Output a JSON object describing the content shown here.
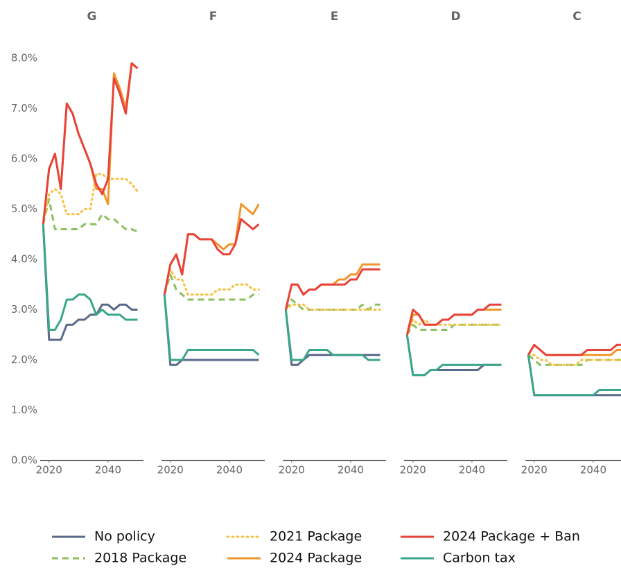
{
  "chart_data": [
    {
      "type": "line",
      "title": "G",
      "x": [
        2018,
        2020,
        2022,
        2024,
        2026,
        2028,
        2030,
        2032,
        2034,
        2036,
        2038,
        2040,
        2042,
        2044,
        2046,
        2048,
        2050
      ],
      "xlim": [
        2017,
        2052
      ],
      "ylim": [
        0,
        8
      ],
      "xticks": [
        2020,
        2040
      ],
      "yticks": [
        {
          "value": 0,
          "label": "0.0%"
        },
        {
          "value": 1,
          "label": "1.0%"
        },
        {
          "value": 2,
          "label": "2.0%"
        },
        {
          "value": 3,
          "label": "3.0%"
        },
        {
          "value": 4,
          "label": "4.0%"
        },
        {
          "value": 5,
          "label": "5.0%"
        },
        {
          "value": 6,
          "label": "6.0%"
        },
        {
          "value": 7,
          "label": "7.0%"
        },
        {
          "value": 8,
          "label": "8.0%"
        }
      ],
      "series": [
        {
          "name": "No policy",
          "color": "#58698a",
          "style": "solid",
          "values": [
            4.7,
            2.4,
            2.4,
            2.4,
            2.7,
            2.7,
            2.8,
            2.8,
            2.9,
            2.9,
            3.1,
            3.1,
            3.0,
            3.1,
            3.1,
            3.0,
            3.0
          ]
        },
        {
          "name": "2018 Package",
          "color": "#8cbf5f",
          "style": "dashed",
          "values": [
            4.7,
            5.2,
            4.6,
            4.6,
            4.6,
            4.6,
            4.6,
            4.7,
            4.7,
            4.7,
            4.9,
            4.8,
            4.8,
            4.7,
            4.6,
            4.6,
            4.55
          ]
        },
        {
          "name": "2021 Package",
          "color": "#f5c242",
          "style": "dotted",
          "values": [
            4.7,
            5.3,
            5.4,
            5.3,
            4.9,
            4.9,
            4.9,
            5.0,
            5.0,
            5.7,
            5.7,
            5.6,
            5.6,
            5.6,
            5.6,
            5.5,
            5.35
          ]
        },
        {
          "name": "2024 Package",
          "color": "#f0962a",
          "style": "solid",
          "values": [
            4.7,
            5.8,
            6.1,
            5.4,
            7.1,
            6.9,
            6.5,
            6.2,
            5.9,
            5.4,
            5.4,
            5.1,
            7.7,
            7.4,
            7.0,
            7.9,
            7.8
          ]
        },
        {
          "name": "2024 Package + Ban",
          "color": "#e8433b",
          "style": "solid",
          "values": [
            4.7,
            5.8,
            6.1,
            5.4,
            7.1,
            6.9,
            6.5,
            6.2,
            5.9,
            5.5,
            5.3,
            5.6,
            7.6,
            7.3,
            6.9,
            7.9,
            7.8
          ]
        },
        {
          "name": "Carbon tax",
          "color": "#3aa68a",
          "style": "solid",
          "values": [
            4.7,
            2.6,
            2.6,
            2.8,
            3.2,
            3.2,
            3.3,
            3.3,
            3.2,
            2.9,
            3.0,
            2.9,
            2.9,
            2.9,
            2.8,
            2.8,
            2.8
          ]
        }
      ]
    },
    {
      "type": "line",
      "title": "F",
      "x": [
        2018,
        2020,
        2022,
        2024,
        2026,
        2028,
        2030,
        2032,
        2034,
        2036,
        2038,
        2040,
        2042,
        2044,
        2046,
        2048,
        2050
      ],
      "xlim": [
        2017,
        2052
      ],
      "ylim": [
        0,
        8
      ],
      "xticks": [
        2020,
        2040
      ],
      "series": [
        {
          "values": [
            3.3,
            1.9,
            1.9,
            2.0,
            2.0,
            2.0,
            2.0,
            2.0,
            2.0,
            2.0,
            2.0,
            2.0,
            2.0,
            2.0,
            2.0,
            2.0,
            2.0
          ]
        },
        {
          "values": [
            3.3,
            3.7,
            3.4,
            3.3,
            3.2,
            3.2,
            3.2,
            3.2,
            3.2,
            3.2,
            3.2,
            3.2,
            3.2,
            3.2,
            3.2,
            3.3,
            3.3
          ]
        },
        {
          "values": [
            3.3,
            3.8,
            3.6,
            3.6,
            3.3,
            3.3,
            3.3,
            3.3,
            3.3,
            3.4,
            3.4,
            3.4,
            3.5,
            3.5,
            3.5,
            3.4,
            3.4
          ]
        },
        {
          "values": [
            3.3,
            3.9,
            4.1,
            3.7,
            4.5,
            4.5,
            4.4,
            4.4,
            4.4,
            4.3,
            4.2,
            4.3,
            4.3,
            5.1,
            5.0,
            4.9,
            5.1
          ]
        },
        {
          "values": [
            3.3,
            3.9,
            4.1,
            3.7,
            4.5,
            4.5,
            4.4,
            4.4,
            4.4,
            4.2,
            4.1,
            4.1,
            4.3,
            4.8,
            4.7,
            4.6,
            4.7
          ]
        },
        {
          "values": [
            3.3,
            2.0,
            2.0,
            2.0,
            2.2,
            2.2,
            2.2,
            2.2,
            2.2,
            2.2,
            2.2,
            2.2,
            2.2,
            2.2,
            2.2,
            2.2,
            2.1
          ]
        }
      ]
    },
    {
      "type": "line",
      "title": "E",
      "x": [
        2018,
        2020,
        2022,
        2024,
        2026,
        2028,
        2030,
        2032,
        2034,
        2036,
        2038,
        2040,
        2042,
        2044,
        2046,
        2048,
        2050
      ],
      "xlim": [
        2017,
        2052
      ],
      "ylim": [
        0,
        8
      ],
      "xticks": [
        2020,
        2040
      ],
      "series": [
        {
          "values": [
            3.0,
            1.9,
            1.9,
            2.0,
            2.1,
            2.1,
            2.1,
            2.1,
            2.1,
            2.1,
            2.1,
            2.1,
            2.1,
            2.1,
            2.1,
            2.1,
            2.1
          ]
        },
        {
          "values": [
            3.0,
            3.2,
            3.1,
            3.0,
            3.0,
            3.0,
            3.0,
            3.0,
            3.0,
            3.0,
            3.0,
            3.0,
            3.0,
            3.1,
            3.0,
            3.1,
            3.1
          ]
        },
        {
          "values": [
            3.0,
            3.1,
            3.1,
            3.1,
            3.0,
            3.0,
            3.0,
            3.0,
            3.0,
            3.0,
            3.0,
            3.0,
            3.0,
            3.0,
            3.0,
            3.0,
            3.0
          ]
        },
        {
          "values": [
            3.0,
            3.5,
            3.5,
            3.3,
            3.4,
            3.4,
            3.5,
            3.5,
            3.5,
            3.6,
            3.6,
            3.7,
            3.7,
            3.9,
            3.9,
            3.9,
            3.9
          ]
        },
        {
          "values": [
            3.0,
            3.5,
            3.5,
            3.3,
            3.4,
            3.4,
            3.5,
            3.5,
            3.5,
            3.5,
            3.5,
            3.6,
            3.6,
            3.8,
            3.8,
            3.8,
            3.8
          ]
        },
        {
          "values": [
            3.0,
            2.0,
            2.0,
            2.0,
            2.2,
            2.2,
            2.2,
            2.2,
            2.1,
            2.1,
            2.1,
            2.1,
            2.1,
            2.1,
            2.0,
            2.0,
            2.0
          ]
        }
      ]
    },
    {
      "type": "line",
      "title": "D",
      "x": [
        2018,
        2020,
        2022,
        2024,
        2026,
        2028,
        2030,
        2032,
        2034,
        2036,
        2038,
        2040,
        2042,
        2044,
        2046,
        2048,
        2050
      ],
      "xlim": [
        2017,
        2052
      ],
      "ylim": [
        0,
        8
      ],
      "xticks": [
        2020,
        2040
      ],
      "series": [
        {
          "values": [
            2.5,
            1.7,
            1.7,
            1.7,
            1.8,
            1.8,
            1.8,
            1.8,
            1.8,
            1.8,
            1.8,
            1.8,
            1.8,
            1.9,
            1.9,
            1.9,
            1.9
          ]
        },
        {
          "values": [
            2.5,
            2.7,
            2.6,
            2.6,
            2.6,
            2.6,
            2.6,
            2.6,
            2.7,
            2.7,
            2.7,
            2.7,
            2.7,
            2.7,
            2.7,
            2.7,
            2.7
          ]
        },
        {
          "values": [
            2.5,
            2.8,
            2.7,
            2.8,
            2.7,
            2.7,
            2.7,
            2.7,
            2.7,
            2.7,
            2.7,
            2.7,
            2.7,
            2.7,
            2.7,
            2.7,
            2.7
          ]
        },
        {
          "values": [
            2.5,
            2.9,
            2.9,
            2.7,
            2.7,
            2.7,
            2.8,
            2.8,
            2.9,
            2.9,
            2.9,
            2.9,
            3.0,
            3.0,
            3.0,
            3.0,
            3.0
          ]
        },
        {
          "values": [
            2.5,
            3.0,
            2.9,
            2.7,
            2.7,
            2.7,
            2.8,
            2.8,
            2.9,
            2.9,
            2.9,
            2.9,
            3.0,
            3.0,
            3.1,
            3.1,
            3.1
          ]
        },
        {
          "values": [
            2.5,
            1.7,
            1.7,
            1.7,
            1.8,
            1.8,
            1.9,
            1.9,
            1.9,
            1.9,
            1.9,
            1.9,
            1.9,
            1.9,
            1.9,
            1.9,
            1.9
          ]
        }
      ]
    },
    {
      "type": "line",
      "title": "C",
      "x": [
        2018,
        2020,
        2022,
        2024,
        2026,
        2028,
        2030,
        2032,
        2034,
        2036,
        2038,
        2040,
        2042,
        2044,
        2046,
        2048,
        2050
      ],
      "xlim": [
        2017,
        2052
      ],
      "ylim": [
        0,
        8
      ],
      "xticks": [
        2020,
        2040
      ],
      "series": [
        {
          "values": [
            2.1,
            1.3,
            1.3,
            1.3,
            1.3,
            1.3,
            1.3,
            1.3,
            1.3,
            1.3,
            1.3,
            1.3,
            1.3,
            1.3,
            1.3,
            1.3,
            1.3
          ]
        },
        {
          "values": [
            2.1,
            2.0,
            1.9,
            1.9,
            1.9,
            1.9,
            1.9,
            1.9,
            1.9,
            1.9,
            2.0,
            2.0,
            2.0,
            2.0,
            2.0,
            2.0,
            2.0
          ]
        },
        {
          "values": [
            2.1,
            2.1,
            2.0,
            2.0,
            1.9,
            1.9,
            1.9,
            1.9,
            1.9,
            2.0,
            2.0,
            2.0,
            2.0,
            2.0,
            2.0,
            2.0,
            2.0
          ]
        },
        {
          "values": [
            2.1,
            2.3,
            2.2,
            2.1,
            2.1,
            2.1,
            2.1,
            2.1,
            2.1,
            2.1,
            2.1,
            2.1,
            2.1,
            2.1,
            2.1,
            2.2,
            2.2
          ]
        },
        {
          "values": [
            2.1,
            2.3,
            2.2,
            2.1,
            2.1,
            2.1,
            2.1,
            2.1,
            2.1,
            2.1,
            2.2,
            2.2,
            2.2,
            2.2,
            2.2,
            2.3,
            2.3
          ]
        },
        {
          "values": [
            2.1,
            1.3,
            1.3,
            1.3,
            1.3,
            1.3,
            1.3,
            1.3,
            1.3,
            1.3,
            1.3,
            1.3,
            1.4,
            1.4,
            1.4,
            1.4,
            1.4
          ]
        }
      ]
    }
  ]
}
